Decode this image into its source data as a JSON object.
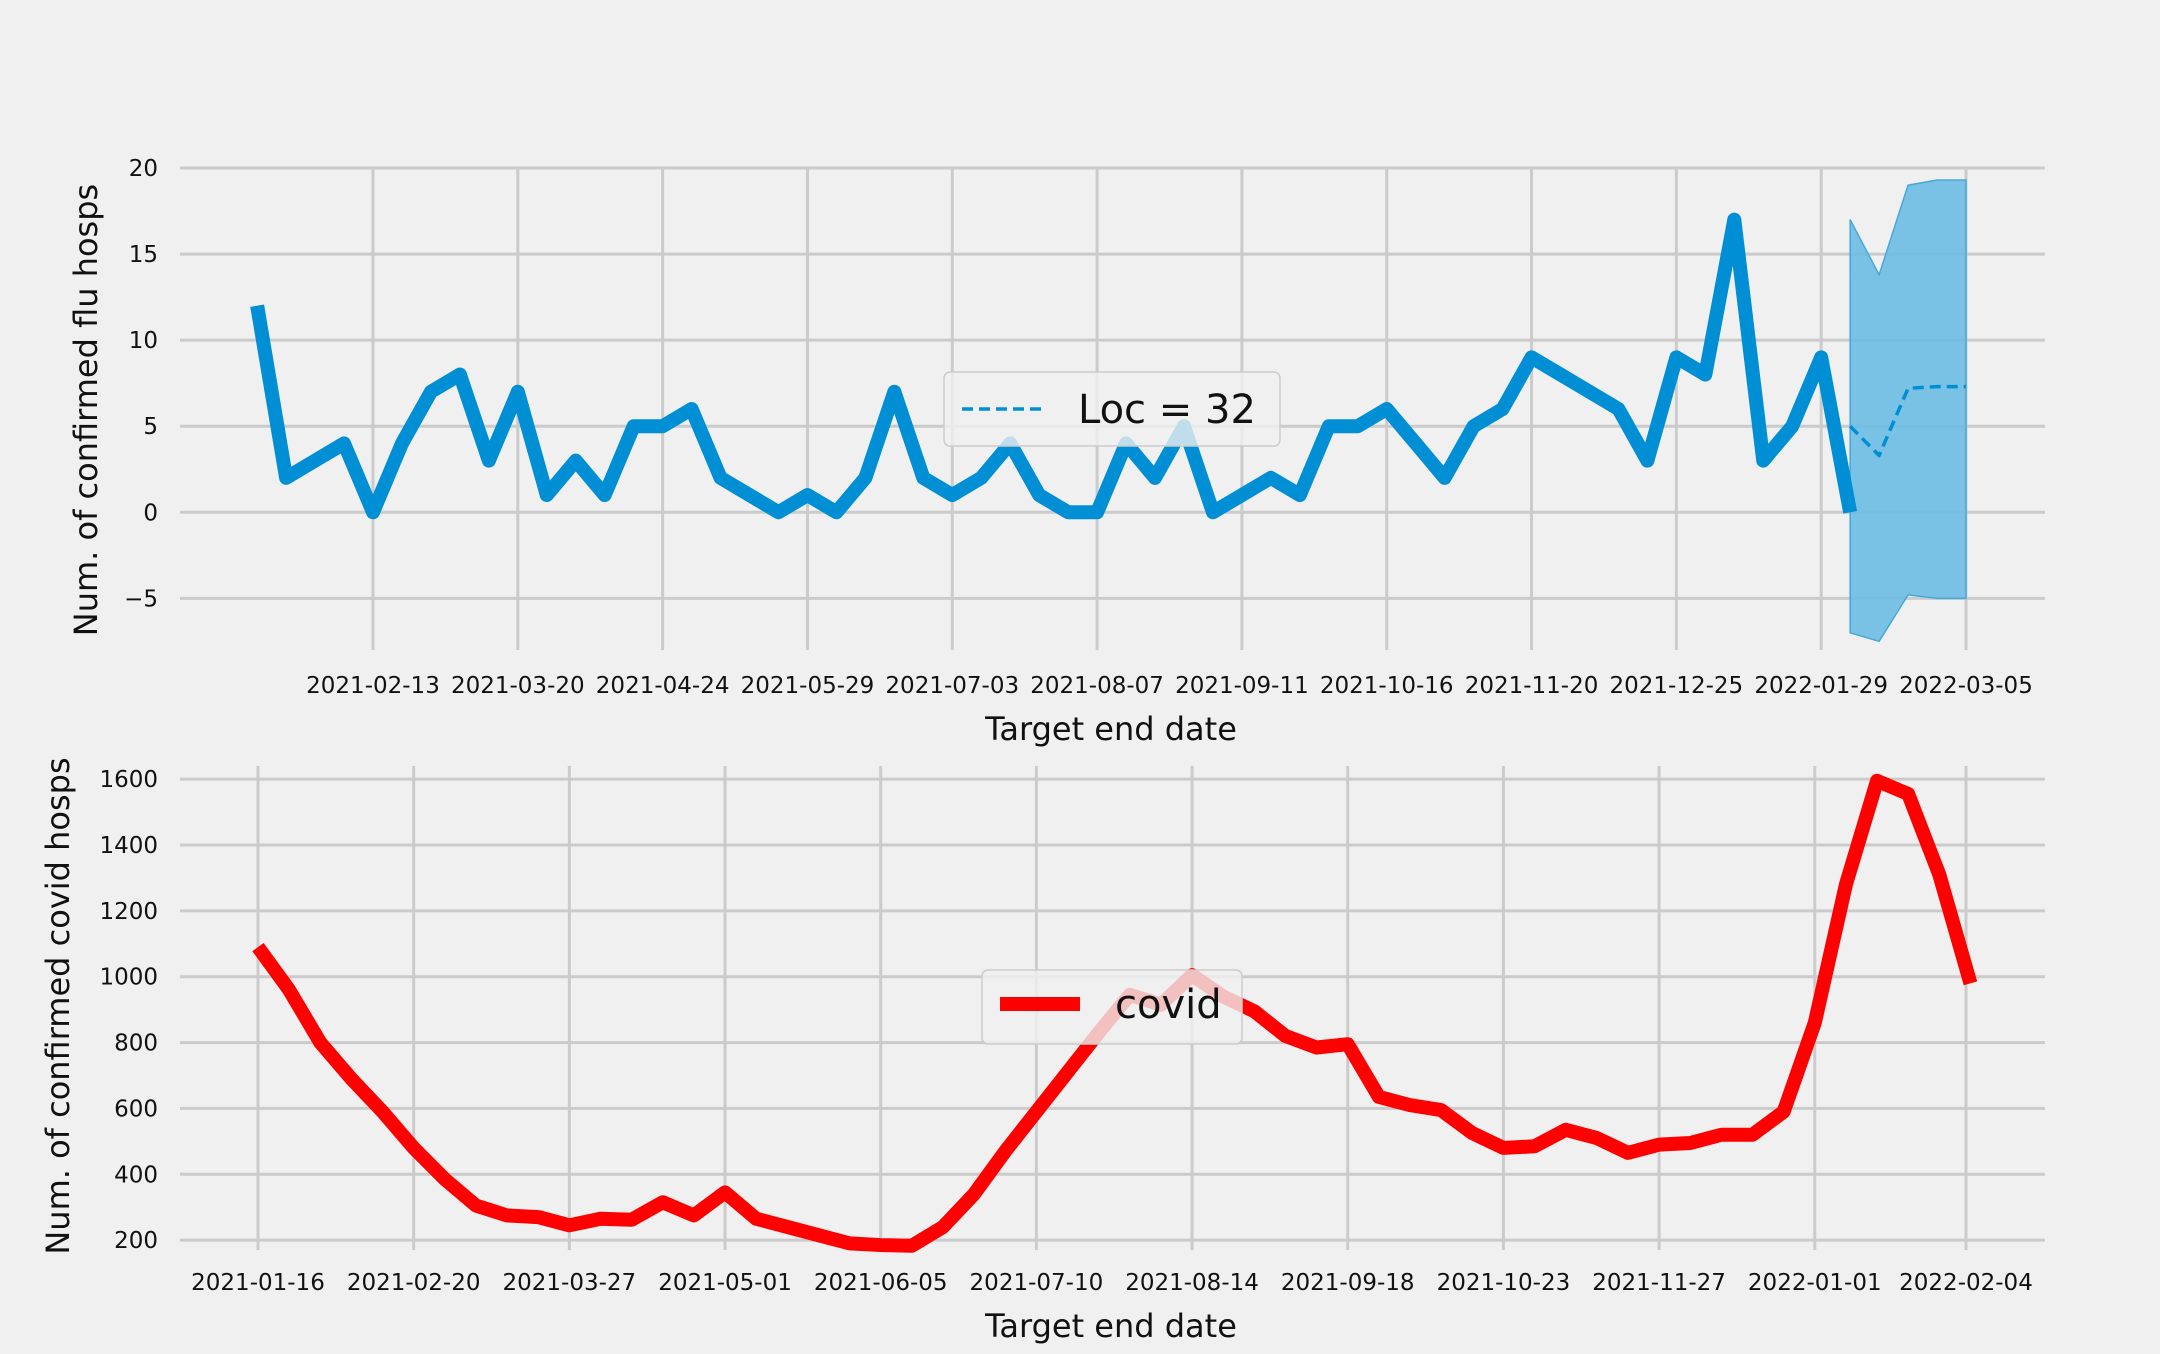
{
  "chart_data": [
    {
      "type": "line",
      "title": "",
      "xlabel": "Target end date",
      "ylabel": "Num. of confirmed flu hosps",
      "ylim": [
        -8,
        20
      ],
      "yticks": [
        -5,
        0,
        5,
        10,
        15,
        20
      ],
      "ytick_labels": [
        "−5",
        "0",
        "5",
        "10",
        "15",
        "20"
      ],
      "xticks": [
        "2021-02-13",
        "2021-03-20",
        "2021-04-24",
        "2021-05-29",
        "2021-07-03",
        "2021-08-07",
        "2021-09-11",
        "2021-10-16",
        "2021-11-20",
        "2021-12-25",
        "2022-01-29",
        "2022-03-05"
      ],
      "grid": true,
      "legend": {
        "placement": "center",
        "entries": [
          "Loc = 32"
        ]
      },
      "series": [
        {
          "name": "",
          "style": "solid",
          "color": "#008fd5",
          "x": [
            "2021-01-16",
            "2021-01-23",
            "2021-01-30",
            "2021-02-06",
            "2021-02-13",
            "2021-02-20",
            "2021-02-27",
            "2021-03-06",
            "2021-03-13",
            "2021-03-20",
            "2021-03-27",
            "2021-04-03",
            "2021-04-10",
            "2021-04-17",
            "2021-04-24",
            "2021-05-01",
            "2021-05-08",
            "2021-05-15",
            "2021-05-22",
            "2021-05-29",
            "2021-06-05",
            "2021-06-12",
            "2021-06-19",
            "2021-06-26",
            "2021-07-03",
            "2021-07-10",
            "2021-07-17",
            "2021-07-24",
            "2021-07-31",
            "2021-08-07",
            "2021-08-14",
            "2021-08-21",
            "2021-08-28",
            "2021-09-04",
            "2021-09-11",
            "2021-09-18",
            "2021-09-25",
            "2021-10-02",
            "2021-10-09",
            "2021-10-16",
            "2021-10-23",
            "2021-10-30",
            "2021-11-06",
            "2021-11-13",
            "2021-11-20",
            "2021-11-27",
            "2021-12-04",
            "2021-12-11",
            "2021-12-18",
            "2021-12-25",
            "2022-01-01",
            "2022-01-08",
            "2022-01-15",
            "2022-01-22",
            "2022-01-29",
            "2022-02-05"
          ],
          "y": [
            12,
            2,
            3,
            4,
            0,
            4,
            7,
            8,
            3,
            7,
            1,
            3,
            1,
            5,
            5,
            6,
            2,
            1,
            0,
            1,
            0,
            2,
            7,
            2,
            1,
            2,
            4,
            1,
            0,
            0,
            4,
            2,
            5,
            0,
            1,
            2,
            1,
            5,
            5,
            6,
            4,
            2,
            5,
            6,
            9,
            8,
            7,
            6,
            3,
            9,
            8,
            17,
            3,
            5,
            9,
            0
          ]
        },
        {
          "name": "Loc = 32",
          "style": "dashed",
          "color": "#008fd5",
          "x": [
            "2022-02-05",
            "2022-02-12",
            "2022-02-19",
            "2022-02-26",
            "2022-03-05"
          ],
          "y": [
            5,
            3.3,
            7.2,
            7.3,
            7.3
          ]
        }
      ],
      "band": {
        "color": "#6bbbe3",
        "x": [
          "2022-02-05",
          "2022-02-12",
          "2022-02-19",
          "2022-02-26",
          "2022-03-05"
        ],
        "lower": [
          -7,
          -7.5,
          -4.8,
          -5,
          -5
        ],
        "upper": [
          17,
          13.8,
          19,
          19.3,
          19.3
        ]
      }
    },
    {
      "type": "line",
      "title": "",
      "xlabel": "Target end date",
      "ylabel": "Num. of confirmed covid hosps",
      "ylim": [
        170,
        1640
      ],
      "yticks": [
        200,
        400,
        600,
        800,
        1000,
        1200,
        1400,
        1600
      ],
      "ytick_labels": [
        "200",
        "400",
        "600",
        "800",
        "1000",
        "1200",
        "1400",
        "1600"
      ],
      "xticks": [
        "2021-01-16",
        "2021-02-20",
        "2021-03-27",
        "2021-05-01",
        "2021-06-05",
        "2021-07-10",
        "2021-08-14",
        "2021-09-18",
        "2021-10-23",
        "2021-11-27",
        "2022-01-01",
        "2022-02-04"
      ],
      "grid": true,
      "legend": {
        "placement": "center",
        "entries": [
          "covid"
        ]
      },
      "series": [
        {
          "name": "covid",
          "style": "solid",
          "color": "#ff0000",
          "x": [
            "2021-01-16",
            "2021-01-23",
            "2021-01-30",
            "2021-02-06",
            "2021-02-13",
            "2021-02-20",
            "2021-02-27",
            "2021-03-06",
            "2021-03-13",
            "2021-03-20",
            "2021-03-27",
            "2021-04-03",
            "2021-04-10",
            "2021-04-17",
            "2021-04-24",
            "2021-05-01",
            "2021-05-08",
            "2021-05-15",
            "2021-05-22",
            "2021-05-29",
            "2021-06-05",
            "2021-06-12",
            "2021-06-19",
            "2021-06-26",
            "2021-07-03",
            "2021-07-10",
            "2021-07-17",
            "2021-07-24",
            "2021-07-31",
            "2021-08-07",
            "2021-08-14",
            "2021-08-21",
            "2021-08-28",
            "2021-09-04",
            "2021-09-11",
            "2021-09-18",
            "2021-09-25",
            "2021-10-02",
            "2021-10-09",
            "2021-10-16",
            "2021-10-23",
            "2021-10-30",
            "2021-11-06",
            "2021-11-13",
            "2021-11-20",
            "2021-11-27",
            "2021-12-04",
            "2021-12-11",
            "2021-12-18",
            "2021-12-25",
            "2022-01-01",
            "2022-01-08",
            "2022-01-15",
            "2022-01-22",
            "2022-01-29",
            "2022-02-05"
          ],
          "y": [
            1090,
            960,
            800,
            690,
            590,
            480,
            385,
            305,
            275,
            270,
            245,
            265,
            262,
            315,
            275,
            345,
            265,
            240,
            215,
            190,
            185,
            183,
            240,
            340,
            470,
            590,
            710,
            830,
            945,
            915,
            1005,
            940,
            895,
            820,
            785,
            795,
            635,
            610,
            595,
            525,
            480,
            485,
            535,
            510,
            465,
            490,
            495,
            520,
            520,
            590,
            860,
            1280,
            1595,
            1555,
            1310,
            980
          ]
        }
      ]
    }
  ]
}
